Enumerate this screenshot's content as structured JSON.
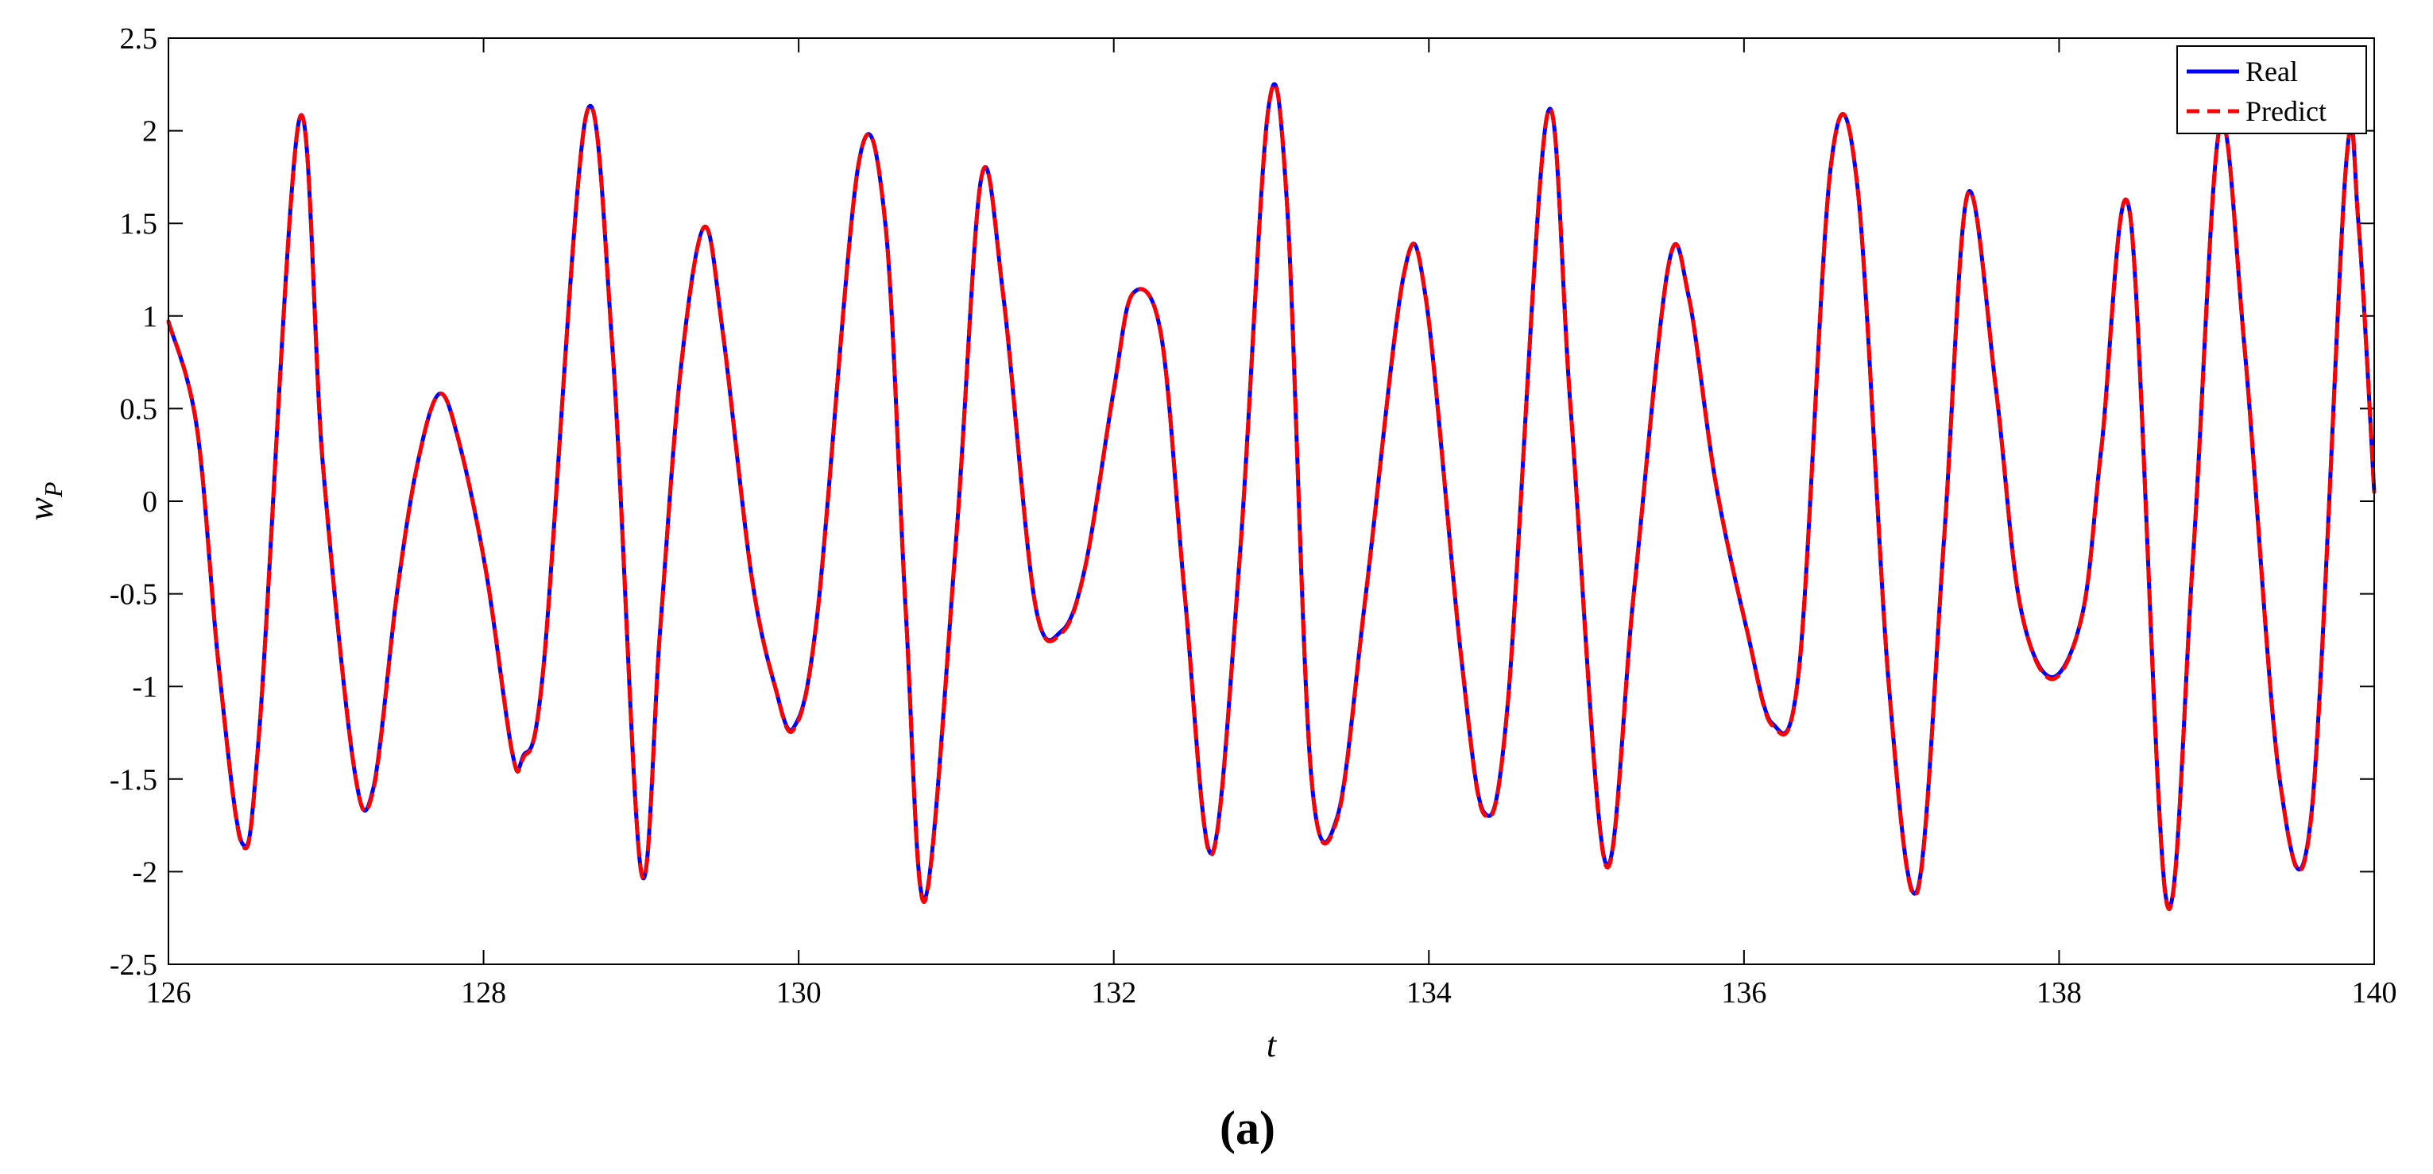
{
  "chart_data": {
    "type": "line",
    "title": "",
    "xlabel": "t",
    "ylabel": "w_P",
    "ylabel_main": "w",
    "ylabel_sub": "P",
    "caption": "(a)",
    "xlim": [
      126,
      140
    ],
    "ylim": [
      -2.5,
      2.5
    ],
    "xticks": [
      126,
      128,
      130,
      132,
      134,
      136,
      138,
      140
    ],
    "xtick_labels": [
      "126",
      "128",
      "130",
      "132",
      "134",
      "136",
      "138",
      "140"
    ],
    "yticks": [
      2.5,
      2,
      1.5,
      1,
      0.5,
      0,
      -0.5,
      -1,
      -1.5,
      -2,
      -2.5
    ],
    "ytick_labels": [
      "2.5",
      "2",
      "1.5",
      "1",
      "0.5",
      "0",
      "-0.5",
      "-1",
      "-1.5",
      "-2",
      "-2.5"
    ],
    "grid": false,
    "legend_position": "top-right",
    "series": [
      {
        "name": "Real",
        "color": "#0000ff",
        "style": "solid",
        "x": [
          126.0,
          126.18,
          126.32,
          126.47,
          126.58,
          126.83,
          126.98,
          127.18,
          127.3,
          127.45,
          127.58,
          127.72,
          127.85,
          128.02,
          128.18,
          128.25,
          128.38,
          128.65,
          128.82,
          129.0,
          129.12,
          129.25,
          129.4,
          129.52,
          129.7,
          129.85,
          129.97,
          130.12,
          130.38,
          130.55,
          130.68,
          130.8,
          131.0,
          131.16,
          131.3,
          131.5,
          131.67,
          131.82,
          132.0,
          132.12,
          132.3,
          132.45,
          132.62,
          132.8,
          132.98,
          133.1,
          133.25,
          133.42,
          133.6,
          133.84,
          133.98,
          134.2,
          134.35,
          134.5,
          134.75,
          134.9,
          135.12,
          135.3,
          135.52,
          135.65,
          135.82,
          136.02,
          136.18,
          136.35,
          136.55,
          136.72,
          136.92,
          137.1,
          137.27,
          137.42,
          137.6,
          137.75,
          137.95,
          138.15,
          138.27,
          138.45,
          138.68,
          138.85,
          139.02,
          139.18,
          139.4,
          139.6,
          139.82,
          139.9,
          140.0
        ],
        "values": [
          0.97,
          0.4,
          -0.9,
          -1.85,
          -1.2,
          2.06,
          0.2,
          -1.45,
          -1.55,
          -0.5,
          0.2,
          0.58,
          0.3,
          -0.4,
          -1.35,
          -1.38,
          -0.9,
          2.08,
          0.8,
          -2.0,
          -0.7,
          0.7,
          1.48,
          0.9,
          -0.4,
          -1.0,
          -1.22,
          -0.6,
          1.82,
          1.5,
          -0.6,
          -2.15,
          -0.2,
          1.75,
          1.1,
          -0.55,
          -0.7,
          -0.35,
          0.6,
          1.12,
          0.9,
          -0.5,
          -1.9,
          -0.3,
          2.11,
          1.6,
          -1.45,
          -1.7,
          -0.5,
          1.22,
          1.1,
          -0.8,
          -1.68,
          -1.1,
          2.08,
          0.5,
          -1.95,
          -0.5,
          1.27,
          1.1,
          0.1,
          -0.7,
          -1.2,
          -0.9,
          1.8,
          1.7,
          -1.0,
          -2.1,
          -0.2,
          1.66,
          0.6,
          -0.55,
          -0.95,
          -0.6,
          0.3,
          1.55,
          -2.15,
          -0.3,
          2.02,
          0.8,
          -1.5,
          -1.7,
          1.8,
          1.5,
          0.05
        ]
      },
      {
        "name": "Predict",
        "color": "#ff0000",
        "style": "dashed",
        "x": [
          126.0,
          126.18,
          126.32,
          126.47,
          126.58,
          126.83,
          126.98,
          127.18,
          127.3,
          127.45,
          127.58,
          127.72,
          127.85,
          128.02,
          128.18,
          128.25,
          128.38,
          128.65,
          128.82,
          129.0,
          129.12,
          129.25,
          129.4,
          129.52,
          129.7,
          129.85,
          129.97,
          130.12,
          130.38,
          130.55,
          130.68,
          130.8,
          131.0,
          131.16,
          131.3,
          131.5,
          131.67,
          131.82,
          132.0,
          132.12,
          132.3,
          132.45,
          132.62,
          132.8,
          132.98,
          133.1,
          133.25,
          133.42,
          133.6,
          133.84,
          133.98,
          134.2,
          134.35,
          134.5,
          134.75,
          134.9,
          135.12,
          135.3,
          135.52,
          135.65,
          135.82,
          136.02,
          136.18,
          136.35,
          136.55,
          136.72,
          136.92,
          137.1,
          137.27,
          137.42,
          137.6,
          137.75,
          137.95,
          138.15,
          138.27,
          138.45,
          138.68,
          138.85,
          139.02,
          139.18,
          139.4,
          139.6,
          139.82,
          139.9,
          140.0
        ],
        "values": [
          0.97,
          0.4,
          -0.9,
          -1.86,
          -1.2,
          2.06,
          0.2,
          -1.45,
          -1.56,
          -0.5,
          0.2,
          0.58,
          0.3,
          -0.4,
          -1.35,
          -1.39,
          -0.9,
          2.08,
          0.8,
          -2.0,
          -0.7,
          0.7,
          1.48,
          0.9,
          -0.4,
          -1.0,
          -1.23,
          -0.6,
          1.82,
          1.5,
          -0.6,
          -2.16,
          -0.2,
          1.75,
          1.1,
          -0.55,
          -0.71,
          -0.35,
          0.6,
          1.12,
          0.9,
          -0.5,
          -1.91,
          -0.3,
          2.11,
          1.6,
          -1.45,
          -1.71,
          -0.5,
          1.22,
          1.1,
          -0.8,
          -1.69,
          -1.1,
          2.08,
          0.5,
          -1.96,
          -0.5,
          1.27,
          1.1,
          0.1,
          -0.7,
          -1.21,
          -0.9,
          1.8,
          1.7,
          -1.0,
          -2.11,
          -0.2,
          1.66,
          0.6,
          -0.55,
          -0.96,
          -0.6,
          0.3,
          1.55,
          -2.16,
          -0.3,
          2.02,
          0.8,
          -1.5,
          -1.71,
          1.8,
          1.5,
          0.05
        ]
      }
    ]
  }
}
